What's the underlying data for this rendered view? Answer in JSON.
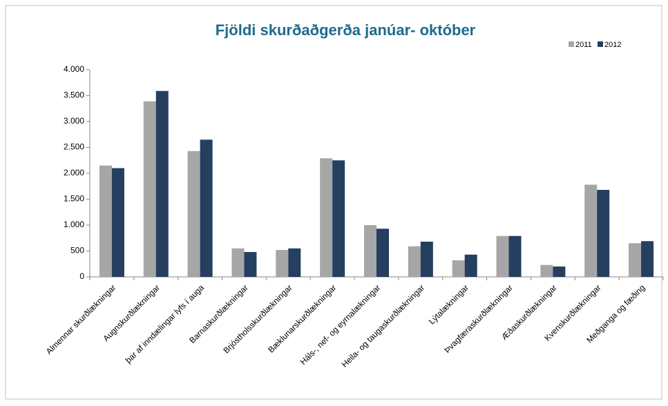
{
  "chart_data": {
    "type": "bar",
    "title": "Fjöldi skurðaðgerða janúar- október",
    "categories": [
      "Almennar skurðlækningar",
      "Augnskurðlækningar",
      "þar af inndælingar lyfs í auga",
      "Barnaskurðlækningar",
      "Brjóstholsskurðlækningar",
      "Bæklunarskurðlækningar",
      "Háls-, nef- og eyrnalækningar",
      "Heila- og taugaskurðlækningar",
      "Lýtalækningar",
      "Þvagfæraskurðlækningar",
      "Æðaskurðlækningar",
      "Kvenskurðlækningar",
      "Meðganga og fæðing"
    ],
    "series": [
      {
        "name": "2011",
        "color": "#a6a6a6",
        "values": [
          2150,
          3390,
          2430,
          550,
          520,
          2290,
          1000,
          590,
          320,
          790,
          230,
          1780,
          650
        ]
      },
      {
        "name": "2012",
        "color": "#243f60",
        "values": [
          2100,
          3590,
          2650,
          480,
          550,
          2250,
          930,
          680,
          430,
          790,
          200,
          1680,
          690
        ]
      }
    ],
    "ylim": [
      0,
      4000
    ],
    "yticks": [
      0,
      500,
      {
        "value": 1000,
        "label": "1.000"
      },
      {
        "value": 1500,
        "label": "1.500"
      },
      {
        "value": 2000,
        "label": "2.000"
      },
      {
        "value": 2500,
        "label": "2.500"
      },
      {
        "value": 3000,
        "label": "3.000"
      },
      {
        "value": 3500,
        "label": "3.500"
      },
      {
        "value": 4000,
        "label": "4.000"
      }
    ],
    "grid": false,
    "legend": "top-right"
  }
}
